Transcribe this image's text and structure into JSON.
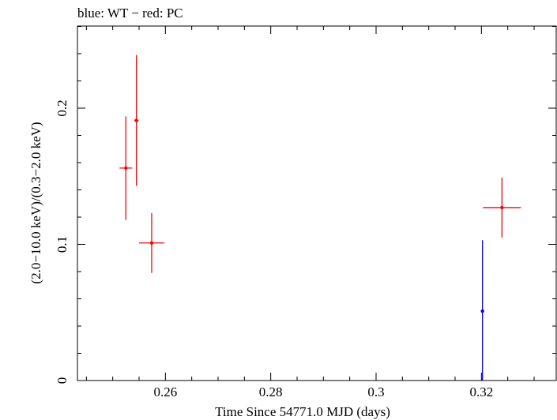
{
  "chart_data": {
    "type": "scatter",
    "title": "blue: WT − red: PC",
    "xlabel": "Time Since 54771.0 MJD (days)",
    "ylabel": "(2.0−10.0 keV)/(0.3−2.0 keV)",
    "xlim": [
      0.2433,
      0.3342
    ],
    "ylim": [
      0.0,
      0.2603
    ],
    "x_ticks": [
      {
        "value": 0.26,
        "label": "0.26"
      },
      {
        "value": 0.28,
        "label": "0.28"
      },
      {
        "value": 0.3,
        "label": "0.3"
      },
      {
        "value": 0.32,
        "label": "0.32"
      }
    ],
    "y_ticks": [
      {
        "value": 0.0,
        "label": "0"
      },
      {
        "value": 0.1,
        "label": "0.1"
      },
      {
        "value": 0.2,
        "label": "0.2"
      }
    ],
    "series": [
      {
        "name": "PC",
        "color": "#ff0000",
        "points": [
          {
            "x": 0.2525,
            "xerr": 0.0012,
            "y": 0.156,
            "yerr": 0.038
          },
          {
            "x": 0.2545,
            "xerr": 0.0004,
            "y": 0.191,
            "yerr": 0.048
          },
          {
            "x": 0.2574,
            "xerr": 0.0024,
            "y": 0.101,
            "yerr": 0.022
          },
          {
            "x": 0.3239,
            "xerr": 0.0036,
            "y": 0.127,
            "yerr": 0.022
          }
        ]
      },
      {
        "name": "WT",
        "color": "#0000ff",
        "points": [
          {
            "x": 0.3202,
            "xerr": 5e-05,
            "y": 0.051,
            "yerr_low": 0.051,
            "yerr_high": 0.052
          }
        ]
      }
    ]
  }
}
